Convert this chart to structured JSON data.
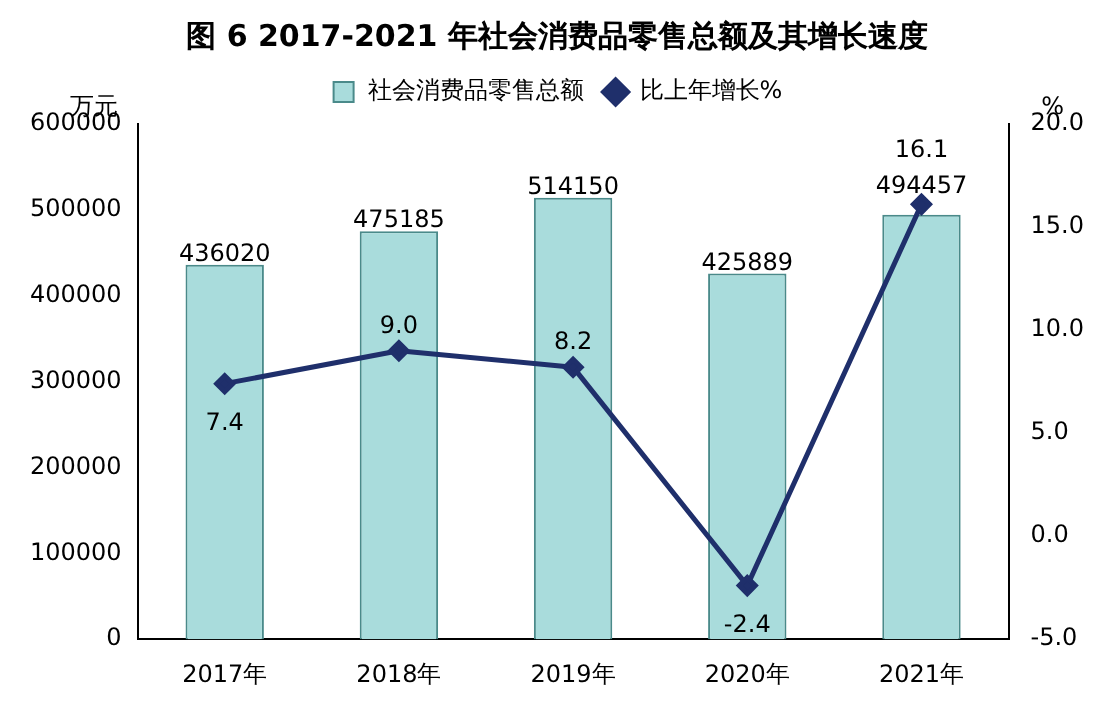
{
  "chart_data": {
    "type": "bar",
    "title": "图 6 2017-2021 年社会消费品零售总额及其增长速度",
    "ylabel": "万元",
    "y2label": "%",
    "categories": [
      "2017年",
      "2018年",
      "2019年",
      "2020年",
      "2021年"
    ],
    "series": [
      {
        "name": "社会消费品零售总额",
        "color": "#a9dcdc",
        "values": [
          436020,
          475185,
          514150,
          425889,
          494457
        ],
        "value_labels": [
          "436020",
          "475185",
          "514150",
          "425889",
          "494457"
        ]
      },
      {
        "name": "比上年增长%",
        "type": "line",
        "axis": "y2",
        "color": "#1f2f6b",
        "marker": "diamond",
        "values": [
          7.4,
          9.0,
          8.2,
          -2.4,
          16.1
        ],
        "value_labels": [
          "7.4",
          "9.0",
          "8.2",
          "-2.4",
          "16.1"
        ]
      }
    ],
    "ylim": [
      0,
      600000
    ],
    "yticks": [
      0,
      100000,
      200000,
      300000,
      400000,
      500000,
      600000
    ],
    "y2lim": [
      -5,
      20
    ],
    "y2ticks": [
      {
        "value": -5,
        "label": "-5.0"
      },
      {
        "value": 0,
        "label": "0.0"
      },
      {
        "value": 5,
        "label": "5.0"
      },
      {
        "value": 10,
        "label": "10.0"
      },
      {
        "value": 15,
        "label": "15.0"
      },
      {
        "value": 20,
        "label": "20.0"
      }
    ],
    "legend": "top",
    "grid": false
  }
}
